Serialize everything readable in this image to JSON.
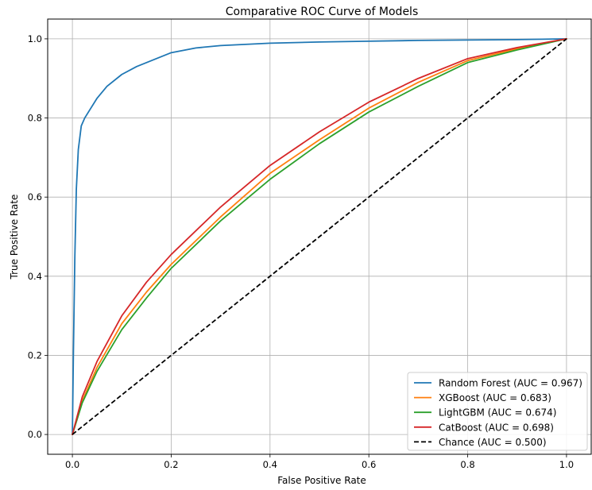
{
  "chart_data": {
    "type": "line",
    "title": "Comparative ROC Curve of Models",
    "xlabel": "False Positive Rate",
    "ylabel": "True Positive Rate",
    "xlim": [
      -0.05,
      1.05
    ],
    "ylim": [
      -0.05,
      1.05
    ],
    "grid": true,
    "legend_position": "bottom-right",
    "x_ticks": [
      0.0,
      0.2,
      0.4,
      0.6,
      0.8,
      1.0
    ],
    "y_ticks": [
      0.0,
      0.2,
      0.4,
      0.6,
      0.8,
      1.0
    ],
    "x_tick_labels": [
      "0.0",
      "0.2",
      "0.4",
      "0.6",
      "0.8",
      "1.0"
    ],
    "y_tick_labels": [
      "0.0",
      "0.2",
      "0.4",
      "0.6",
      "0.8",
      "1.0"
    ],
    "series": [
      {
        "name": "Random Forest (AUC = 0.967)",
        "color": "#1f77b4",
        "dash": "solid",
        "x": [
          0.0,
          0.002,
          0.005,
          0.008,
          0.012,
          0.018,
          0.025,
          0.035,
          0.05,
          0.07,
          0.1,
          0.13,
          0.16,
          0.2,
          0.25,
          0.3,
          0.4,
          0.5,
          0.6,
          0.7,
          0.8,
          0.9,
          1.0
        ],
        "y": [
          0.0,
          0.2,
          0.45,
          0.62,
          0.72,
          0.78,
          0.8,
          0.82,
          0.85,
          0.88,
          0.91,
          0.93,
          0.945,
          0.965,
          0.977,
          0.983,
          0.989,
          0.992,
          0.994,
          0.996,
          0.997,
          0.998,
          1.0
        ]
      },
      {
        "name": "XGBoost (AUC = 0.683)",
        "color": "#ff7f0e",
        "dash": "solid",
        "x": [
          0.0,
          0.02,
          0.05,
          0.1,
          0.15,
          0.2,
          0.3,
          0.4,
          0.5,
          0.6,
          0.7,
          0.8,
          0.9,
          1.0
        ],
        "y": [
          0.0,
          0.085,
          0.17,
          0.28,
          0.36,
          0.43,
          0.55,
          0.66,
          0.745,
          0.825,
          0.89,
          0.945,
          0.975,
          1.0
        ]
      },
      {
        "name": "LightGBM (AUC = 0.674)",
        "color": "#2ca02c",
        "dash": "solid",
        "x": [
          0.0,
          0.02,
          0.05,
          0.1,
          0.15,
          0.2,
          0.3,
          0.4,
          0.5,
          0.6,
          0.7,
          0.8,
          0.9,
          1.0
        ],
        "y": [
          0.0,
          0.08,
          0.16,
          0.265,
          0.345,
          0.42,
          0.54,
          0.645,
          0.735,
          0.815,
          0.88,
          0.94,
          0.972,
          1.0
        ]
      },
      {
        "name": "CatBoost (AUC = 0.698)",
        "color": "#d62728",
        "dash": "solid",
        "x": [
          0.0,
          0.02,
          0.05,
          0.1,
          0.15,
          0.2,
          0.3,
          0.4,
          0.5,
          0.6,
          0.7,
          0.8,
          0.9,
          1.0
        ],
        "y": [
          0.0,
          0.095,
          0.185,
          0.3,
          0.385,
          0.455,
          0.575,
          0.68,
          0.765,
          0.84,
          0.9,
          0.95,
          0.978,
          1.0
        ]
      },
      {
        "name": "Chance (AUC = 0.500)",
        "color": "#000000",
        "dash": "dashed",
        "x": [
          0.0,
          1.0
        ],
        "y": [
          0.0,
          1.0
        ]
      }
    ]
  }
}
